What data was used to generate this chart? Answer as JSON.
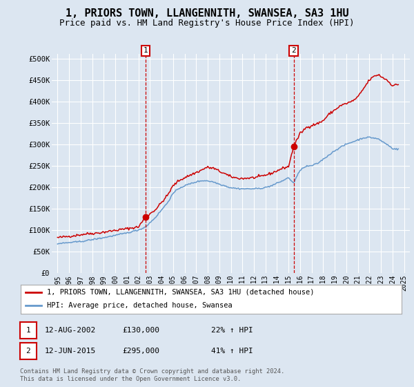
{
  "title": "1, PRIORS TOWN, LLANGENNITH, SWANSEA, SA3 1HU",
  "subtitle": "Price paid vs. HM Land Registry's House Price Index (HPI)",
  "title_fontsize": 11,
  "subtitle_fontsize": 9,
  "background_color": "#dce6f1",
  "plot_bg_color": "#dce6f1",
  "grid_color": "#ffffff",
  "red_color": "#cc0000",
  "blue_color": "#6699cc",
  "marker1_date": 2002.62,
  "marker1_value": 130000,
  "marker1_label": "1",
  "marker2_date": 2015.44,
  "marker2_value": 295000,
  "marker2_label": "2",
  "legend_line1": "1, PRIORS TOWN, LLANGENNITH, SWANSEA, SA3 1HU (detached house)",
  "legend_line2": "HPI: Average price, detached house, Swansea",
  "table_row1": [
    "1",
    "12-AUG-2002",
    "£130,000",
    "22% ↑ HPI"
  ],
  "table_row2": [
    "2",
    "12-JUN-2015",
    "£295,000",
    "41% ↑ HPI"
  ],
  "footer": "Contains HM Land Registry data © Crown copyright and database right 2024.\nThis data is licensed under the Open Government Licence v3.0.",
  "ylim": [
    0,
    510000
  ],
  "xlim": [
    1994.5,
    2025.5
  ],
  "yticks": [
    0,
    50000,
    100000,
    150000,
    200000,
    250000,
    300000,
    350000,
    400000,
    450000,
    500000
  ],
  "ytick_labels": [
    "£0",
    "£50K",
    "£100K",
    "£150K",
    "£200K",
    "£250K",
    "£300K",
    "£350K",
    "£400K",
    "£450K",
    "£500K"
  ],
  "xticks": [
    1995,
    1996,
    1997,
    1998,
    1999,
    2000,
    2001,
    2002,
    2003,
    2004,
    2005,
    2006,
    2007,
    2008,
    2009,
    2010,
    2011,
    2012,
    2013,
    2014,
    2015,
    2016,
    2017,
    2018,
    2019,
    2020,
    2021,
    2022,
    2023,
    2024,
    2025
  ]
}
